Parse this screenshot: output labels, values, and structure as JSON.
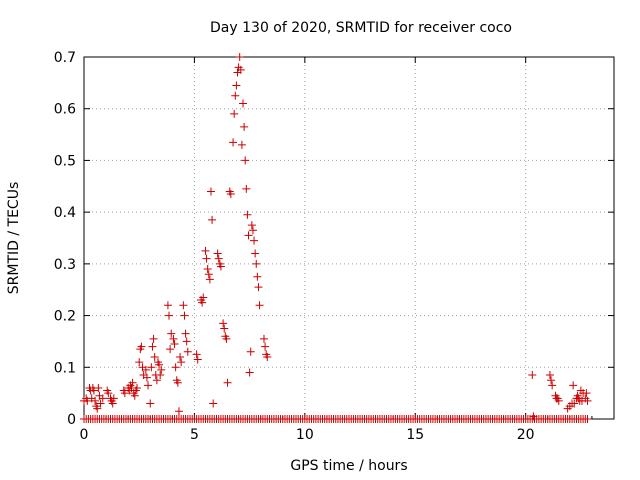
{
  "chart_data": {
    "type": "scatter",
    "title": "Day 130 of 2020, SRMTID for receiver coco",
    "xlabel": "GPS time / hours",
    "ylabel": "SRMTID / TECUs",
    "xlim": [
      0,
      24
    ],
    "ylim": [
      0,
      0.7
    ],
    "xticks": [
      0,
      5,
      10,
      15,
      20
    ],
    "xtick_labels": [
      "0",
      "5",
      "10",
      "15",
      "20"
    ],
    "yticks": [
      0,
      0.1,
      0.2,
      0.3,
      0.4,
      0.5,
      0.6,
      0.7
    ],
    "ytick_labels": [
      "0",
      "0.1",
      "0.2",
      "0.3",
      "0.4",
      "0.5",
      "0.6",
      "0.7"
    ],
    "grid": true,
    "marker": "plus",
    "marker_color": "#cc0000",
    "series": [
      {
        "name": "SRMTID",
        "points": [
          [
            0.0,
            0.035
          ],
          [
            0.1,
            0.04
          ],
          [
            0.15,
            0.035
          ],
          [
            0.25,
            0.06
          ],
          [
            0.3,
            0.055
          ],
          [
            0.35,
            0.04
          ],
          [
            0.4,
            0.06
          ],
          [
            0.45,
            0.055
          ],
          [
            0.5,
            0.035
          ],
          [
            0.55,
            0.025
          ],
          [
            0.6,
            0.02
          ],
          [
            0.65,
            0.06
          ],
          [
            0.7,
            0.045
          ],
          [
            0.75,
            0.03
          ],
          [
            0.85,
            0.04
          ],
          [
            1.05,
            0.055
          ],
          [
            1.1,
            0.05
          ],
          [
            1.2,
            0.04
          ],
          [
            1.25,
            0.035
          ],
          [
            1.3,
            0.03
          ],
          [
            1.35,
            0.04
          ],
          [
            1.8,
            0.055
          ],
          [
            1.85,
            0.05
          ],
          [
            2.0,
            0.06
          ],
          [
            2.05,
            0.055
          ],
          [
            2.1,
            0.065
          ],
          [
            2.15,
            0.06
          ],
          [
            2.2,
            0.07
          ],
          [
            2.25,
            0.05
          ],
          [
            2.3,
            0.045
          ],
          [
            2.35,
            0.055
          ],
          [
            2.4,
            0.06
          ],
          [
            2.5,
            0.11
          ],
          [
            2.55,
            0.135
          ],
          [
            2.6,
            0.14
          ],
          [
            2.65,
            0.1
          ],
          [
            2.7,
            0.085
          ],
          [
            2.8,
            0.095
          ],
          [
            2.85,
            0.08
          ],
          [
            2.9,
            0.065
          ],
          [
            3.0,
            0.03
          ],
          [
            3.05,
            0.1
          ],
          [
            3.1,
            0.14
          ],
          [
            3.15,
            0.155
          ],
          [
            3.2,
            0.12
          ],
          [
            3.25,
            0.085
          ],
          [
            3.3,
            0.075
          ],
          [
            3.35,
            0.11
          ],
          [
            3.4,
            0.105
          ],
          [
            3.45,
            0.085
          ],
          [
            3.5,
            0.095
          ],
          [
            3.8,
            0.22
          ],
          [
            3.85,
            0.2
          ],
          [
            3.9,
            0.135
          ],
          [
            3.95,
            0.165
          ],
          [
            4.05,
            0.155
          ],
          [
            4.1,
            0.145
          ],
          [
            4.15,
            0.1
          ],
          [
            4.2,
            0.075
          ],
          [
            4.25,
            0.07
          ],
          [
            4.3,
            0.015
          ],
          [
            4.35,
            0.12
          ],
          [
            4.4,
            0.11
          ],
          [
            4.5,
            0.22
          ],
          [
            4.55,
            0.2
          ],
          [
            4.6,
            0.165
          ],
          [
            4.65,
            0.15
          ],
          [
            4.7,
            0.13
          ],
          [
            5.1,
            0.125
          ],
          [
            5.15,
            0.115
          ],
          [
            5.3,
            0.23
          ],
          [
            5.35,
            0.225
          ],
          [
            5.4,
            0.235
          ],
          [
            5.5,
            0.325
          ],
          [
            5.55,
            0.31
          ],
          [
            5.6,
            0.29
          ],
          [
            5.65,
            0.28
          ],
          [
            5.7,
            0.27
          ],
          [
            5.75,
            0.44
          ],
          [
            5.8,
            0.385
          ],
          [
            5.85,
            0.03
          ],
          [
            6.05,
            0.32
          ],
          [
            6.1,
            0.31
          ],
          [
            6.15,
            0.3
          ],
          [
            6.2,
            0.295
          ],
          [
            6.3,
            0.185
          ],
          [
            6.35,
            0.175
          ],
          [
            6.4,
            0.16
          ],
          [
            6.45,
            0.155
          ],
          [
            6.5,
            0.07
          ],
          [
            6.6,
            0.44
          ],
          [
            6.65,
            0.435
          ],
          [
            6.75,
            0.535
          ],
          [
            6.8,
            0.59
          ],
          [
            6.85,
            0.625
          ],
          [
            6.9,
            0.645
          ],
          [
            6.95,
            0.67
          ],
          [
            7.0,
            0.68
          ],
          [
            7.05,
            0.7
          ],
          [
            7.1,
            0.675
          ],
          [
            7.15,
            0.53
          ],
          [
            7.2,
            0.61
          ],
          [
            7.25,
            0.565
          ],
          [
            7.3,
            0.5
          ],
          [
            7.35,
            0.445
          ],
          [
            7.4,
            0.395
          ],
          [
            7.45,
            0.355
          ],
          [
            7.5,
            0.09
          ],
          [
            7.55,
            0.13
          ],
          [
            7.6,
            0.375
          ],
          [
            7.65,
            0.365
          ],
          [
            7.7,
            0.345
          ],
          [
            7.75,
            0.32
          ],
          [
            7.8,
            0.3
          ],
          [
            7.85,
            0.275
          ],
          [
            7.9,
            0.255
          ],
          [
            7.95,
            0.22
          ],
          [
            8.15,
            0.155
          ],
          [
            8.2,
            0.14
          ],
          [
            8.25,
            0.125
          ],
          [
            8.3,
            0.12
          ],
          [
            20.3,
            0.085
          ],
          [
            20.35,
            0.005
          ],
          [
            21.1,
            0.085
          ],
          [
            21.15,
            0.075
          ],
          [
            21.2,
            0.065
          ],
          [
            21.35,
            0.045
          ],
          [
            21.4,
            0.04
          ],
          [
            21.45,
            0.04
          ],
          [
            21.5,
            0.035
          ],
          [
            21.9,
            0.02
          ],
          [
            22.0,
            0.025
          ],
          [
            22.1,
            0.03
          ],
          [
            22.15,
            0.065
          ],
          [
            22.2,
            0.03
          ],
          [
            22.3,
            0.04
          ],
          [
            22.35,
            0.045
          ],
          [
            22.4,
            0.04
          ],
          [
            22.45,
            0.035
          ],
          [
            22.5,
            0.055
          ],
          [
            22.55,
            0.035
          ],
          [
            22.6,
            0.05
          ],
          [
            22.7,
            0.04
          ],
          [
            22.75,
            0.05
          ],
          [
            22.8,
            0.035
          ]
        ],
        "zero_run_x": [
          0,
          22.8
        ],
        "zero_run_y": 0
      }
    ]
  }
}
